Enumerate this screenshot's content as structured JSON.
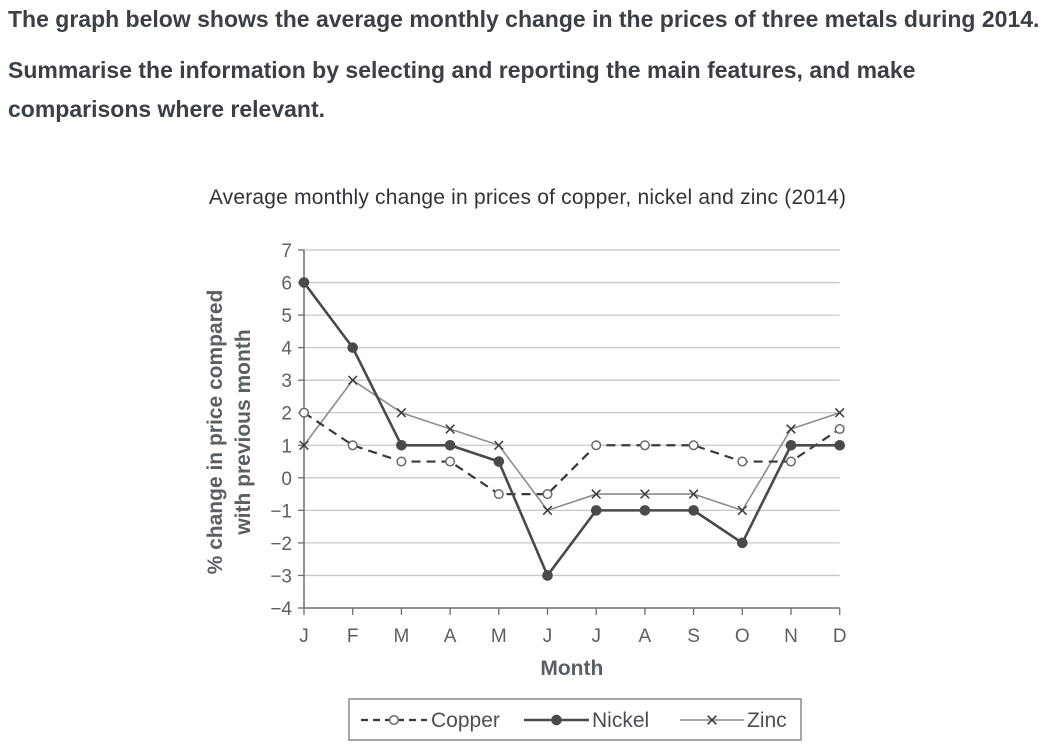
{
  "prompt": {
    "line1": "The graph below shows the average monthly change in the prices of three metals during 2014.",
    "line2": "Summarise the information by selecting and reporting the main features, and make comparisons where relevant."
  },
  "chart_data": {
    "type": "line",
    "title": "Average monthly change in prices of copper, nickel and zinc (2014)",
    "xlabel": "Month",
    "ylabel": "% change in price compared with previous month",
    "ylabel_lines": [
      "% change in price compared",
      "with previous month"
    ],
    "categories": [
      "J",
      "F",
      "M",
      "A",
      "M",
      "J",
      "J",
      "A",
      "S",
      "O",
      "N",
      "D"
    ],
    "ylim": [
      -4,
      7
    ],
    "yticks": [
      "7",
      "6",
      "5",
      "4",
      "3",
      "2",
      "1",
      "0",
      "−1",
      "−2",
      "−3",
      "−4"
    ],
    "grid": true,
    "legend_position": "bottom",
    "series": [
      {
        "name": "Copper",
        "style": "dashed",
        "marker": "circle-open",
        "values": [
          2,
          1,
          0.5,
          0.5,
          -0.5,
          -0.5,
          1,
          1,
          1,
          0.5,
          0.5,
          1.5
        ]
      },
      {
        "name": "Nickel",
        "style": "solid",
        "marker": "circle-filled",
        "values": [
          6,
          4,
          1,
          1,
          0.5,
          -3,
          -1,
          -1,
          -1,
          -2,
          1,
          1
        ]
      },
      {
        "name": "Zinc",
        "style": "solid-light",
        "marker": "cross",
        "values": [
          1,
          3,
          2,
          1.5,
          1,
          -1,
          -0.5,
          -0.5,
          -0.5,
          -1,
          1.5,
          2
        ]
      }
    ],
    "colors": {
      "copper": "#3a3a3a",
      "nickel": "#4a4a4a",
      "zinc": "#8c8c8c",
      "grid": "#c8c8c8",
      "axis": "#6e6e6e"
    }
  }
}
